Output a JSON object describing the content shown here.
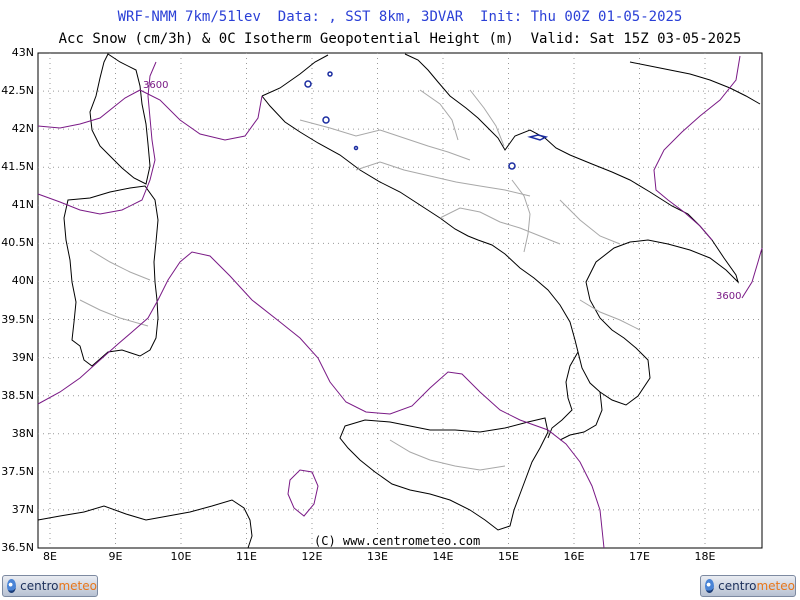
{
  "header": {
    "line1": "WRF-NMM 7km/51lev  Data: , SST 8km, 3DVAR  Init: Thu 00Z 01-05-2025",
    "line2": "Acc Snow (cm/3h) & 0C Isotherm Geopotential Height (m)  Valid: Sat 15Z 03-05-2025"
  },
  "map": {
    "lat_labels": [
      "43N",
      "42.5N",
      "42N",
      "41.5N",
      "41N",
      "40.5N",
      "40N",
      "39.5N",
      "39N",
      "38.5N",
      "38N",
      "37.5N",
      "37N",
      "36.5N"
    ],
    "lon_labels": [
      "8E",
      "9E",
      "10E",
      "11E",
      "12E",
      "13E",
      "14E",
      "15E",
      "16E",
      "17E",
      "18E"
    ],
    "contour_labels": [
      "3600",
      "3600"
    ],
    "copyright": "(C) www.centrometeo.com",
    "colors": {
      "coast": "#000000",
      "borders": "#a0a0a0",
      "isotherm": "#7a1a86",
      "snow": "#1a2ca0",
      "grid": "#999999"
    }
  },
  "logos": {
    "left": {
      "part1": "centro",
      "part2": "meteo"
    },
    "right": {
      "part1": "centro",
      "part2": "meteo"
    }
  }
}
